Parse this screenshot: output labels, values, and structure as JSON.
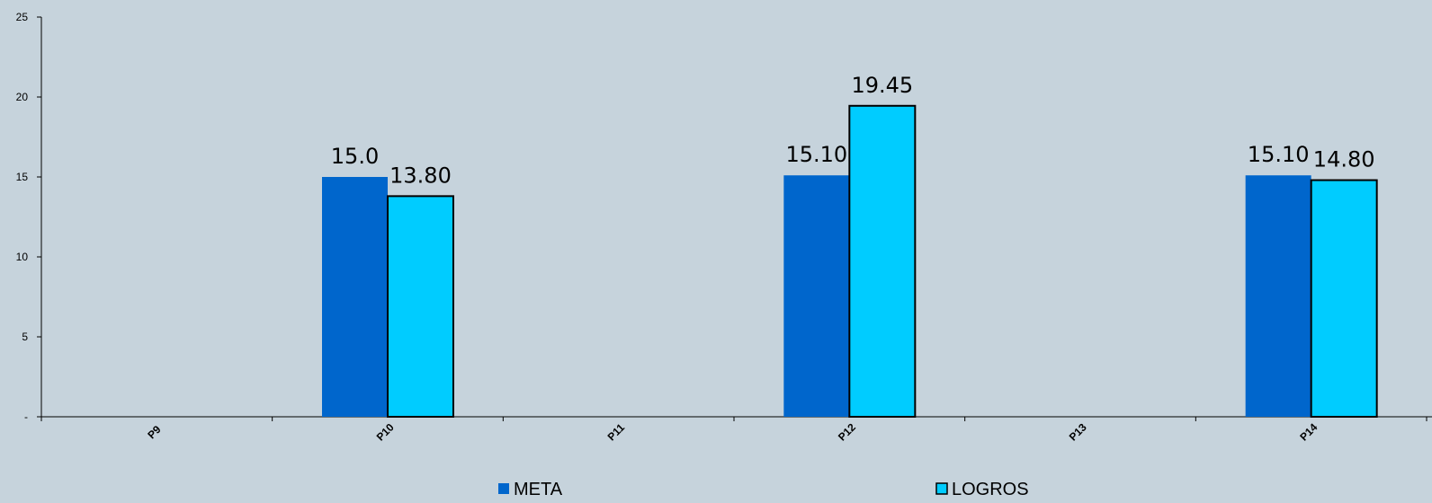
{
  "chart_data": {
    "type": "bar",
    "categories": [
      "P9",
      "P10",
      "P11",
      "P12",
      "P13",
      "P14"
    ],
    "series": [
      {
        "name": "META",
        "color": "#0066cc",
        "values": [
          null,
          15.0,
          null,
          15.1,
          null,
          15.1
        ],
        "labels": [
          "",
          "15.0",
          "",
          "15.10",
          "",
          "15.10"
        ]
      },
      {
        "name": "LOGROS",
        "color": "#00ccff",
        "values": [
          null,
          13.8,
          null,
          19.45,
          null,
          14.8
        ],
        "labels": [
          "",
          "13.80",
          "",
          "19.45",
          "",
          "14.80"
        ]
      }
    ],
    "ylim": [
      0,
      25
    ],
    "yticks": [
      0,
      5,
      10,
      15,
      20,
      25
    ],
    "ytick_labels": [
      "-",
      "5",
      "10",
      "15",
      "20",
      "25"
    ],
    "xlabel": "",
    "ylabel": "",
    "title": "",
    "grid": false,
    "legend_position": "bottom",
    "background": "#c6d3dc"
  }
}
